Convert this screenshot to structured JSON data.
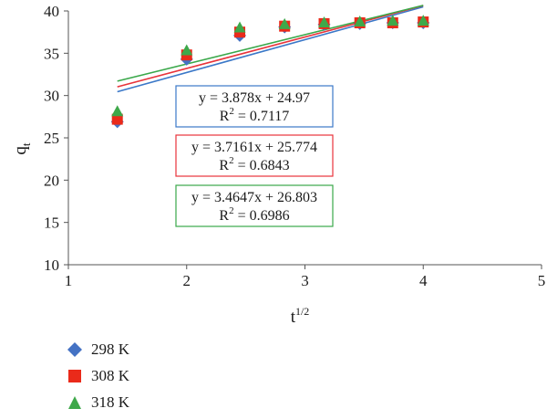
{
  "chart_data": {
    "type": "scatter",
    "xlabel": "t",
    "xlabel_sup": "1/2",
    "ylabel": "q",
    "ylabel_sub": "t",
    "xlim": [
      1,
      5
    ],
    "ylim": [
      10,
      40
    ],
    "x_ticks": [
      "1",
      "2",
      "3",
      "4",
      "5"
    ],
    "y_ticks": [
      "10",
      "15",
      "20",
      "25",
      "30",
      "35",
      "40"
    ],
    "grid": false,
    "legend_position": "bottom-left",
    "series": [
      {
        "name": "298 K",
        "marker": "diamond",
        "color": "#4472c4",
        "x": [
          1.414,
          2.0,
          2.449,
          2.828,
          3.162,
          3.464,
          3.742,
          4.0
        ],
        "y": [
          26.9,
          34.3,
          37.1,
          38.1,
          38.4,
          38.5,
          38.6,
          38.6
        ],
        "fit": {
          "slope": 3.878,
          "intercept": 24.97,
          "x_range": [
            1.414,
            4.0
          ],
          "color": "#3b78c8",
          "equation": "y = 3.878x + 24.97",
          "r2_label": "R",
          "r2_sup": "2",
          "r2_value": " = 0.7117"
        }
      },
      {
        "name": "308 K",
        "marker": "square",
        "color": "#ea2a1a",
        "x": [
          1.414,
          2.0,
          2.449,
          2.828,
          3.162,
          3.464,
          3.742,
          4.0
        ],
        "y": [
          27.2,
          34.8,
          37.5,
          38.2,
          38.5,
          38.6,
          38.6,
          38.7
        ],
        "fit": {
          "slope": 3.7161,
          "intercept": 25.774,
          "x_range": [
            1.414,
            4.0
          ],
          "color": "#e8333b",
          "equation": "y = 3.7161x + 25.774",
          "r2_label": "R",
          "r2_sup": "2",
          "r2_value": " = 0.6843"
        }
      },
      {
        "name": "318 K",
        "marker": "triangle",
        "color": "#3ea84a",
        "x": [
          1.414,
          2.0,
          2.449,
          2.828,
          3.162,
          3.464,
          3.742,
          4.0
        ],
        "y": [
          28.1,
          35.3,
          38.0,
          38.4,
          38.6,
          38.7,
          38.8,
          38.8
        ],
        "fit": {
          "slope": 3.4647,
          "intercept": 26.803,
          "x_range": [
            1.414,
            4.0
          ],
          "color": "#3aa84a",
          "equation": "y = 3.4647x + 26.803",
          "r2_label": "R",
          "r2_sup": "2",
          "r2_value": " = 0.6986"
        }
      }
    ]
  }
}
